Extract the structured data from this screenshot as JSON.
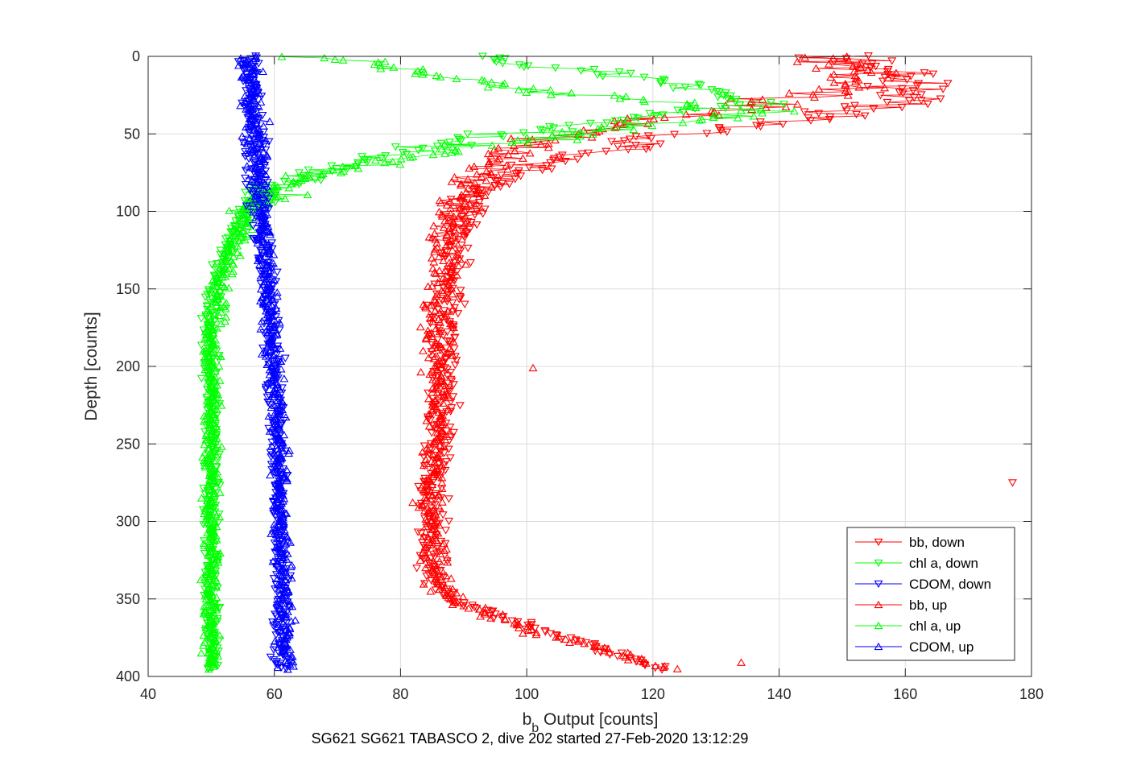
{
  "chart_data": {
    "type": "scatter",
    "title": "",
    "caption": "SG621 SG621 TABASCO 2, dive 202 started 27-Feb-2020 13:12:29",
    "xlabel_main": "b",
    "xlabel_sub": "b",
    "xlabel_rest": " Output [counts]",
    "ylabel": "Depth [counts]",
    "xlim": [
      40,
      180
    ],
    "ylim": [
      0,
      400
    ],
    "y_reversed": true,
    "grid": true,
    "legend_position": "bottom-right",
    "x_ticks": [
      "40",
      "60",
      "80",
      "100",
      "120",
      "140",
      "160",
      "180"
    ],
    "y_ticks": [
      "0",
      "50",
      "100",
      "150",
      "200",
      "250",
      "300",
      "350",
      "400"
    ],
    "series": [
      {
        "name": "bb, down",
        "color": "#ff0000",
        "marker": "triangle-down",
        "profile": [
          [
            0,
            148
          ],
          [
            10,
            160
          ],
          [
            20,
            162
          ],
          [
            30,
            158
          ],
          [
            40,
            146
          ],
          [
            50,
            124
          ],
          [
            60,
            114
          ],
          [
            70,
            102
          ],
          [
            80,
            96
          ],
          [
            90,
            93
          ],
          [
            100,
            91
          ],
          [
            120,
            89
          ],
          [
            140,
            88
          ],
          [
            160,
            87
          ],
          [
            180,
            87
          ],
          [
            200,
            87
          ],
          [
            220,
            87
          ],
          [
            240,
            86
          ],
          [
            260,
            86
          ],
          [
            280,
            85
          ],
          [
            300,
            85
          ],
          [
            320,
            85
          ],
          [
            340,
            86
          ],
          [
            350,
            88
          ],
          [
            360,
            95
          ],
          [
            370,
            102
          ],
          [
            380,
            110
          ],
          [
            390,
            118
          ],
          [
            395,
            122
          ]
        ],
        "outliers": [
          [
            177,
            275
          ]
        ]
      },
      {
        "name": "chl a, down",
        "color": "#00ff00",
        "marker": "triangle-down",
        "profile": [
          [
            0,
            92
          ],
          [
            10,
            110
          ],
          [
            20,
            128
          ],
          [
            30,
            136
          ],
          [
            40,
            118
          ],
          [
            50,
            98
          ],
          [
            60,
            82
          ],
          [
            70,
            72
          ],
          [
            80,
            63
          ],
          [
            90,
            58
          ],
          [
            100,
            55
          ],
          [
            120,
            53
          ],
          [
            140,
            51
          ],
          [
            160,
            50
          ],
          [
            180,
            50
          ],
          [
            200,
            50
          ],
          [
            250,
            50
          ],
          [
            300,
            50
          ],
          [
            350,
            50
          ],
          [
            395,
            50
          ]
        ]
      },
      {
        "name": "CDOM, down",
        "color": "#0000ff",
        "marker": "triangle-down",
        "profile": [
          [
            0,
            56
          ],
          [
            50,
            57
          ],
          [
            100,
            58
          ],
          [
            150,
            59
          ],
          [
            200,
            60
          ],
          [
            250,
            60.5
          ],
          [
            300,
            61
          ],
          [
            350,
            61
          ],
          [
            395,
            61
          ]
        ]
      },
      {
        "name": "bb, up",
        "color": "#ff0000",
        "marker": "triangle-up",
        "profile": [
          [
            0,
            146
          ],
          [
            10,
            150
          ],
          [
            20,
            148
          ],
          [
            30,
            138
          ],
          [
            40,
            120
          ],
          [
            50,
            108
          ],
          [
            60,
            98
          ],
          [
            70,
            94
          ],
          [
            80,
            92
          ],
          [
            90,
            90
          ],
          [
            100,
            88
          ],
          [
            120,
            87
          ],
          [
            140,
            87
          ],
          [
            160,
            86
          ],
          [
            180,
            86
          ],
          [
            200,
            86
          ],
          [
            220,
            86
          ],
          [
            240,
            86
          ],
          [
            260,
            85
          ],
          [
            280,
            85
          ],
          [
            300,
            85
          ],
          [
            320,
            85
          ],
          [
            340,
            86
          ],
          [
            350,
            88
          ],
          [
            360,
            94
          ],
          [
            370,
            100
          ],
          [
            380,
            110
          ],
          [
            390,
            118
          ],
          [
            395,
            122
          ]
        ],
        "outliers": [
          [
            101,
            201
          ],
          [
            134,
            391
          ]
        ]
      },
      {
        "name": "chl a, up",
        "color": "#00ff00",
        "marker": "triangle-up",
        "profile": [
          [
            0,
            68
          ],
          [
            10,
            80
          ],
          [
            20,
            98
          ],
          [
            30,
            122
          ],
          [
            35,
            142
          ],
          [
            40,
            130
          ],
          [
            50,
            108
          ],
          [
            60,
            88
          ],
          [
            70,
            74
          ],
          [
            80,
            64
          ],
          [
            90,
            60
          ],
          [
            100,
            56
          ],
          [
            120,
            54
          ],
          [
            140,
            52
          ],
          [
            160,
            51
          ],
          [
            180,
            50
          ],
          [
            200,
            50
          ],
          [
            250,
            50
          ],
          [
            300,
            50
          ],
          [
            350,
            50
          ],
          [
            395,
            50
          ]
        ]
      },
      {
        "name": "CDOM, up",
        "color": "#0000ff",
        "marker": "triangle-up",
        "profile": [
          [
            0,
            56
          ],
          [
            50,
            57
          ],
          [
            100,
            58
          ],
          [
            150,
            59
          ],
          [
            200,
            60
          ],
          [
            250,
            61
          ],
          [
            300,
            61
          ],
          [
            350,
            61.5
          ],
          [
            395,
            62
          ]
        ]
      }
    ]
  }
}
